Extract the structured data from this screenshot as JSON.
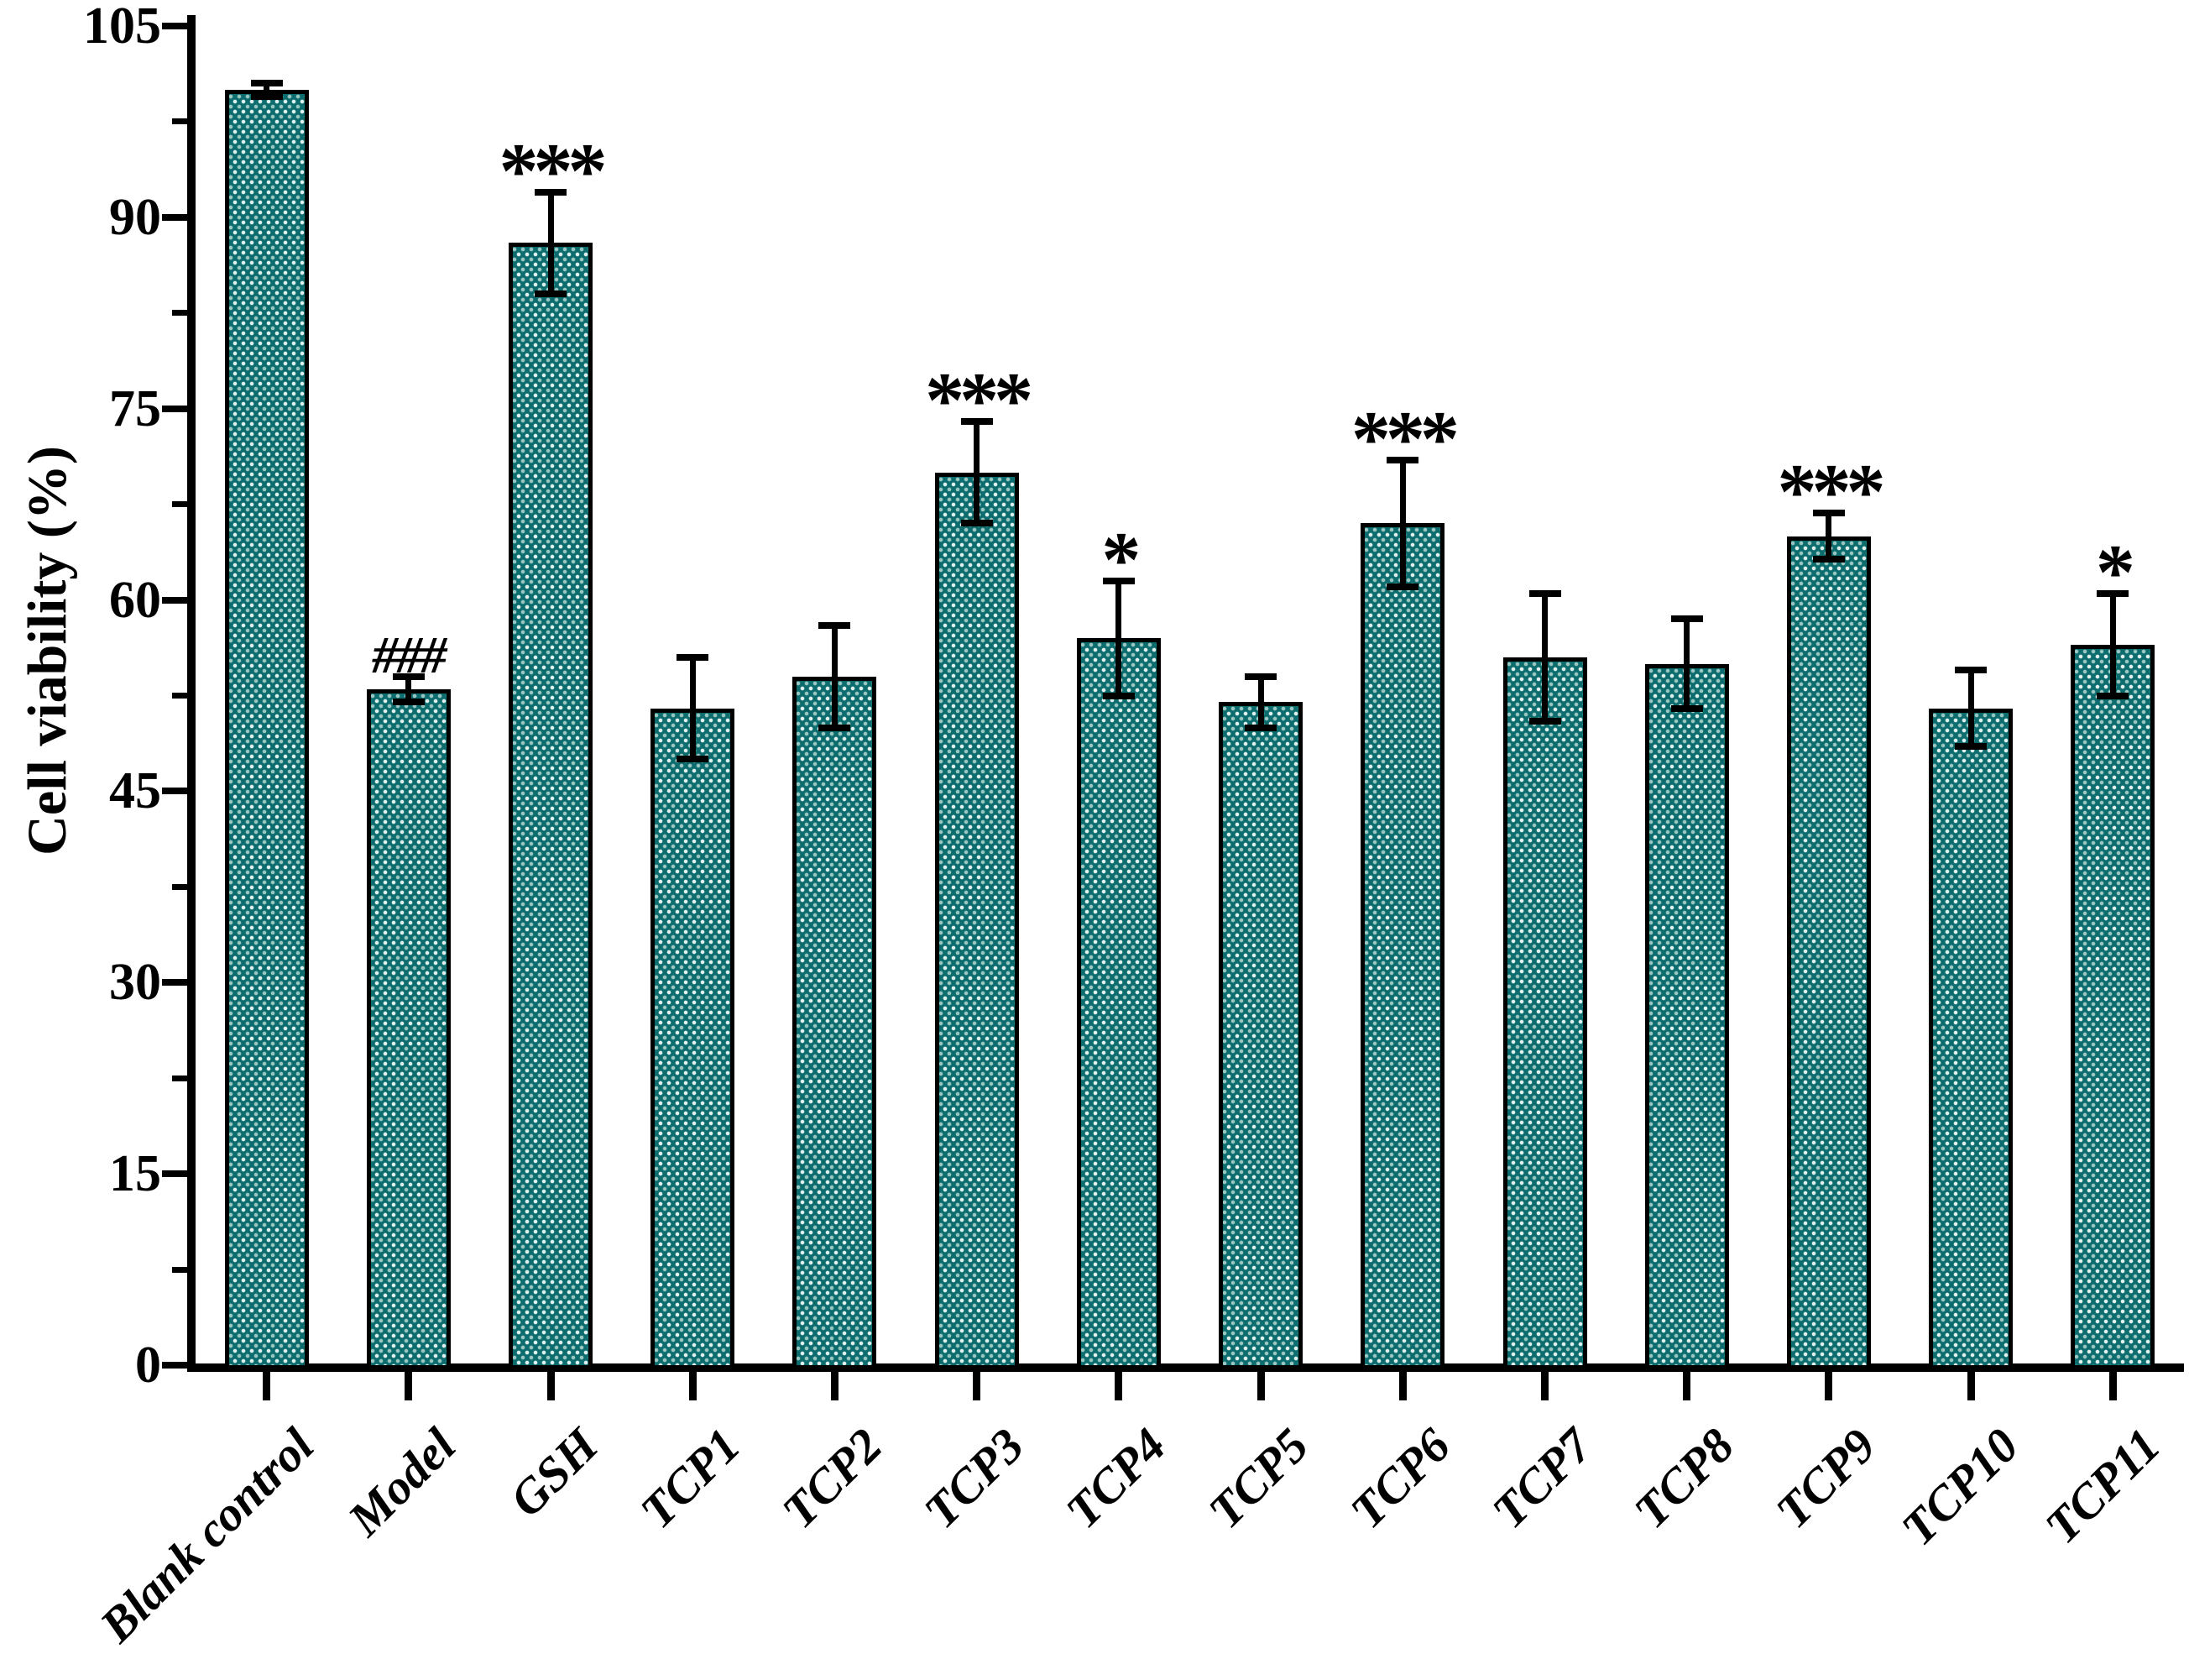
{
  "chart_data": {
    "type": "bar",
    "title": "",
    "xlabel": "",
    "ylabel": "Cell viability (%)",
    "ylim": [
      0,
      105
    ],
    "yticks": [
      0,
      15,
      30,
      45,
      60,
      75,
      90,
      105
    ],
    "minor_ytick_step": 7.5,
    "grid": false,
    "legend": null,
    "bar_color": "#0d6c6d",
    "bar_dot_colors": [
      "#eaf7f5",
      "#b2d6d2"
    ],
    "bar_outline_color": "#000000",
    "axis_color": "#000000",
    "categories": [
      "Blank control",
      "Model",
      "GSH",
      "TCP1",
      "TCP2",
      "TCP3",
      "TCP4",
      "TCP5",
      "TCP6",
      "TCP7",
      "TCP8",
      "TCP9",
      "TCP10",
      "TCP11"
    ],
    "series": [
      {
        "name": "Cell viability (%)",
        "values": [
          100,
          53,
          88,
          51.5,
          54,
          70,
          57,
          52,
          66,
          55.5,
          55,
          65,
          51.5,
          56.5
        ],
        "errors": [
          0.5,
          1,
          4,
          4,
          4,
          4,
          4.5,
          2,
          5,
          5,
          3.5,
          1.8,
          3,
          4
        ],
        "annotations": [
          "",
          "###",
          "***",
          "",
          "",
          "***",
          "*",
          "",
          "***",
          "",
          "",
          "***",
          "",
          "*"
        ]
      }
    ]
  }
}
